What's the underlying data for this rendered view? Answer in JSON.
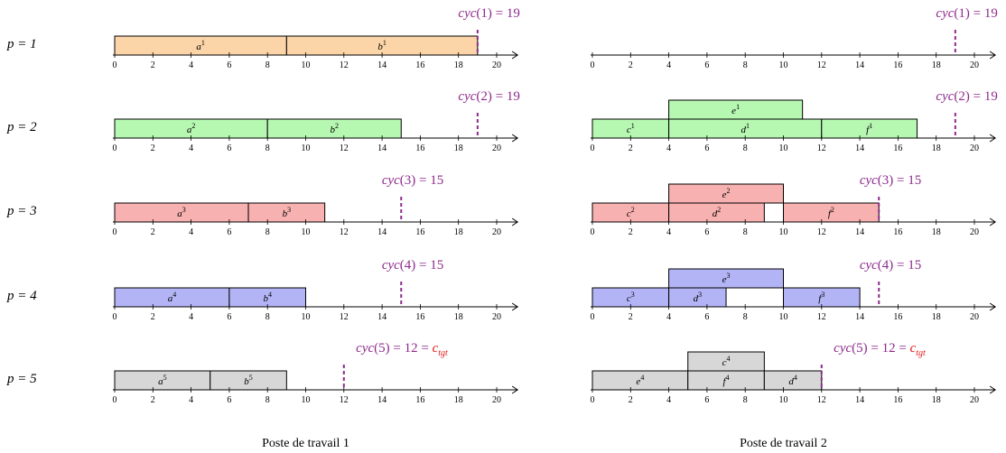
{
  "colors": {
    "p1": "#fbd4a8",
    "p2": "#b6f7b2",
    "p3": "#f7b1b1",
    "p4": "#b3b4f6",
    "p5": "#d7d7d7",
    "cycle": "#8e2b8c",
    "target": "#e31b1b",
    "axis": "#000000",
    "box_border": "#000000"
  },
  "axis": {
    "min": 0,
    "max": 21,
    "ticks": [
      0,
      2,
      4,
      6,
      8,
      10,
      12,
      14,
      16,
      18,
      20
    ]
  },
  "rows": [
    {
      "label": "p = 1",
      "color_key": "p1"
    },
    {
      "label": "p = 2",
      "color_key": "p2"
    },
    {
      "label": "p = 3",
      "color_key": "p3"
    },
    {
      "label": "p = 4",
      "color_key": "p4"
    },
    {
      "label": "p = 5",
      "color_key": "p5"
    }
  ],
  "panels": [
    {
      "title": "Poste de travail 1",
      "rows": [
        {
          "cyc_label": "cyc(1) = 19",
          "cyc": 19,
          "target_suffix": "",
          "tasks": [
            {
              "name": "a",
              "sup": "1",
              "start": 0,
              "end": 9,
              "level": 0
            },
            {
              "name": "b",
              "sup": "1",
              "start": 9,
              "end": 19,
              "level": 0
            }
          ]
        },
        {
          "cyc_label": "cyc(2) = 19",
          "cyc": 19,
          "target_suffix": "",
          "tasks": [
            {
              "name": "a",
              "sup": "2",
              "start": 0,
              "end": 8,
              "level": 0
            },
            {
              "name": "b",
              "sup": "2",
              "start": 8,
              "end": 15,
              "level": 0
            }
          ]
        },
        {
          "cyc_label": "cyc(3) = 15",
          "cyc": 15,
          "target_suffix": "",
          "tasks": [
            {
              "name": "a",
              "sup": "3",
              "start": 0,
              "end": 7,
              "level": 0
            },
            {
              "name": "b",
              "sup": "3",
              "start": 7,
              "end": 11,
              "level": 0
            }
          ]
        },
        {
          "cyc_label": "cyc(4) = 15",
          "cyc": 15,
          "target_suffix": "",
          "tasks": [
            {
              "name": "a",
              "sup": "4",
              "start": 0,
              "end": 6,
              "level": 0
            },
            {
              "name": "b",
              "sup": "4",
              "start": 6,
              "end": 10,
              "level": 0
            }
          ]
        },
        {
          "cyc_label": "cyc(5) = 12 = ",
          "cyc": 12,
          "target_suffix": "c_tgt",
          "tasks": [
            {
              "name": "a",
              "sup": "5",
              "start": 0,
              "end": 5,
              "level": 0
            },
            {
              "name": "b",
              "sup": "5",
              "start": 5,
              "end": 9,
              "level": 0
            }
          ]
        }
      ]
    },
    {
      "title": "Poste de travail 2",
      "rows": [
        {
          "cyc_label": "cyc(1) = 19",
          "cyc": 19,
          "target_suffix": "",
          "tasks": []
        },
        {
          "cyc_label": "cyc(2) = 19",
          "cyc": 19,
          "target_suffix": "",
          "tasks": [
            {
              "name": "c",
              "sup": "1",
              "start": 0,
              "end": 4,
              "level": 0
            },
            {
              "name": "d",
              "sup": "1",
              "start": 4,
              "end": 12,
              "level": 0
            },
            {
              "name": "f",
              "sup": "1",
              "start": 12,
              "end": 17,
              "level": 0
            },
            {
              "name": "e",
              "sup": "1",
              "start": 4,
              "end": 11,
              "level": 1
            }
          ]
        },
        {
          "cyc_label": "cyc(3) = 15",
          "cyc": 15,
          "target_suffix": "",
          "tasks": [
            {
              "name": "c",
              "sup": "2",
              "start": 0,
              "end": 4,
              "level": 0
            },
            {
              "name": "d",
              "sup": "2",
              "start": 4,
              "end": 9,
              "level": 0
            },
            {
              "name": "f",
              "sup": "2",
              "start": 10,
              "end": 15,
              "level": 0
            },
            {
              "name": "e",
              "sup": "2",
              "start": 4,
              "end": 10,
              "level": 1
            }
          ]
        },
        {
          "cyc_label": "cyc(4) = 15",
          "cyc": 15,
          "target_suffix": "",
          "tasks": [
            {
              "name": "c",
              "sup": "3",
              "start": 0,
              "end": 4,
              "level": 0
            },
            {
              "name": "d",
              "sup": "3",
              "start": 4,
              "end": 7,
              "level": 0
            },
            {
              "name": "f",
              "sup": "3",
              "start": 10,
              "end": 14,
              "level": 0
            },
            {
              "name": "e",
              "sup": "3",
              "start": 4,
              "end": 10,
              "level": 1
            }
          ]
        },
        {
          "cyc_label": "cyc(5) = 12 = ",
          "cyc": 12,
          "target_suffix": "c_tgt",
          "tasks": [
            {
              "name": "e",
              "sup": "4",
              "start": 0,
              "end": 5,
              "level": 0
            },
            {
              "name": "f",
              "sup": "4",
              "start": 5,
              "end": 9,
              "level": 0
            },
            {
              "name": "d",
              "sup": "4",
              "start": 9,
              "end": 12,
              "level": 0
            },
            {
              "name": "c",
              "sup": "4",
              "start": 5,
              "end": 9,
              "level": 1
            }
          ]
        }
      ]
    }
  ]
}
